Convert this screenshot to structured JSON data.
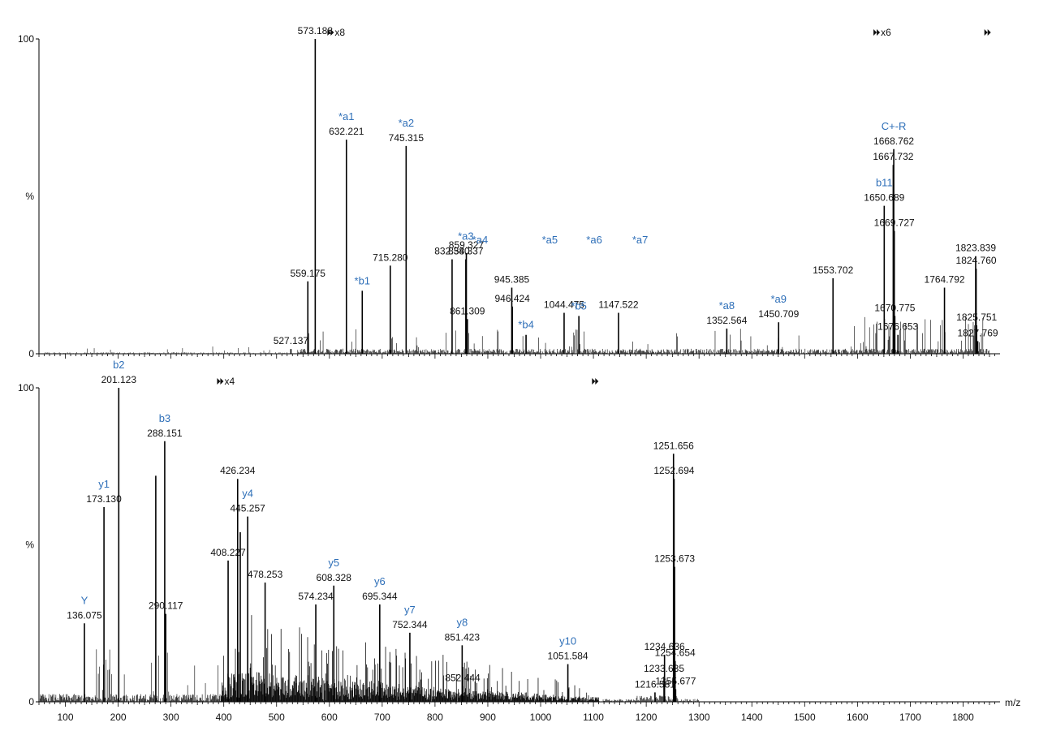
{
  "chart_data": [
    {
      "type": "bar",
      "panel": "top",
      "y_ticks": [
        "100",
        "%",
        "0"
      ],
      "ylim": [
        0,
        100
      ],
      "x_range": [
        50,
        1870
      ],
      "mag_markers": [
        {
          "x": 604,
          "label": "x8",
          "color": "#e0562a"
        },
        {
          "x": 1638,
          "label": "x6",
          "color": "#111111"
        },
        {
          "x": 1848,
          "label": "",
          "color": "#111111"
        }
      ],
      "peaks": [
        {
          "x": 527.137,
          "y": 1.5,
          "label": "527.137"
        },
        {
          "x": 559.175,
          "y": 23,
          "label": "559.175"
        },
        {
          "x": 573.188,
          "y": 100,
          "label": "573.188"
        },
        {
          "x": 632.221,
          "y": 68,
          "label": "632.221",
          "ion": "*a1"
        },
        {
          "x": 662.24,
          "y": 20,
          "label": "",
          "ion": "*b1"
        },
        {
          "x": 715.28,
          "y": 28,
          "label": "715.280"
        },
        {
          "x": 745.315,
          "y": 66,
          "label": "745.315",
          "ion": "*a2"
        },
        {
          "x": 832.34,
          "y": 30,
          "label": "832.340"
        },
        {
          "x": 858.337,
          "y": 30,
          "label": "858.337",
          "ion": "*a3"
        },
        {
          "x": 859.327,
          "y": 32,
          "label": "859.327"
        },
        {
          "x": 861.309,
          "y": 11,
          "label": "861.309"
        },
        {
          "x": 885.35,
          "y": 0,
          "label": "",
          "ion": "*a4"
        },
        {
          "x": 945.385,
          "y": 21,
          "label": "945.385"
        },
        {
          "x": 946.424,
          "y": 15,
          "label": "946.424"
        },
        {
          "x": 972.4,
          "y": 6,
          "label": "",
          "ion": "*b4"
        },
        {
          "x": 1044.475,
          "y": 13,
          "label": "1044.475"
        },
        {
          "x": 1017.45,
          "y": 0,
          "label": "",
          "ion": "*a5"
        },
        {
          "x": 1072.46,
          "y": 12,
          "label": "",
          "ion": "*b5"
        },
        {
          "x": 1101.5,
          "y": 0,
          "label": "",
          "ion": "*a6"
        },
        {
          "x": 1147.522,
          "y": 13,
          "label": "1147.522"
        },
        {
          "x": 1188.5,
          "y": 0,
          "label": "",
          "ion": "*a7"
        },
        {
          "x": 1352.564,
          "y": 8,
          "label": "1352.564",
          "ion": "*a8"
        },
        {
          "x": 1450.709,
          "y": 10,
          "label": "1450.709",
          "ion": "*a9"
        },
        {
          "x": 1553.702,
          "y": 24,
          "label": "1553.702"
        },
        {
          "x": 1650.689,
          "y": 47,
          "label": "1650.689",
          "ion": "b11"
        },
        {
          "x": 1667.732,
          "y": 60,
          "label": "1667.732"
        },
        {
          "x": 1668.762,
          "y": 65,
          "label": "1668.762",
          "ion": "C+-R"
        },
        {
          "x": 1669.727,
          "y": 39,
          "label": "1669.727"
        },
        {
          "x": 1670.775,
          "y": 12,
          "label": "1670.775"
        },
        {
          "x": 1676.653,
          "y": 6,
          "label": "1676.653"
        },
        {
          "x": 1764.792,
          "y": 21,
          "label": "1764.792"
        },
        {
          "x": 1823.839,
          "y": 31,
          "label": "1823.839"
        },
        {
          "x": 1824.76,
          "y": 27,
          "label": "1824.760"
        },
        {
          "x": 1825.751,
          "y": 9,
          "label": "1825.751"
        },
        {
          "x": 1827.769,
          "y": 4,
          "label": "1827.769"
        }
      ]
    },
    {
      "type": "bar",
      "panel": "bottom",
      "xlabel": "m/z",
      "y_ticks": [
        "100",
        "%",
        "0"
      ],
      "ylim": [
        0,
        100
      ],
      "x_range": [
        50,
        1870
      ],
      "x_ticks": [
        100,
        200,
        300,
        400,
        500,
        600,
        700,
        800,
        900,
        1000,
        1100,
        1200,
        1300,
        1400,
        1500,
        1600,
        1700,
        1800
      ],
      "mag_markers": [
        {
          "x": 395,
          "label": "x4",
          "color": "#e0562a"
        },
        {
          "x": 1105,
          "label": "",
          "color": "#111111"
        }
      ],
      "peaks": [
        {
          "x": 136.075,
          "y": 25,
          "label": "136.075",
          "ion": "Y"
        },
        {
          "x": 173.13,
          "y": 62,
          "label": "173.130",
          "ion": "y1"
        },
        {
          "x": 201.123,
          "y": 100,
          "label": "201.123",
          "ion": "b2"
        },
        {
          "x": 271.2,
          "y": 72,
          "label": ""
        },
        {
          "x": 288.151,
          "y": 83,
          "label": "288.151",
          "ion": "b3"
        },
        {
          "x": 290.117,
          "y": 28,
          "label": "290.117"
        },
        {
          "x": 408.227,
          "y": 45,
          "label": "408.227"
        },
        {
          "x": 426.234,
          "y": 71,
          "label": "426.234"
        },
        {
          "x": 431.2,
          "y": 54,
          "label": ""
        },
        {
          "x": 445.257,
          "y": 59,
          "label": "445.257",
          "ion": "y4"
        },
        {
          "x": 478.253,
          "y": 38,
          "label": "478.253"
        },
        {
          "x": 574.234,
          "y": 31,
          "label": "574.234"
        },
        {
          "x": 608.328,
          "y": 37,
          "label": "608.328",
          "ion": "y5"
        },
        {
          "x": 695.344,
          "y": 31,
          "label": "695.344",
          "ion": "y6"
        },
        {
          "x": 752.344,
          "y": 22,
          "label": "752.344",
          "ion": "y7"
        },
        {
          "x": 851.423,
          "y": 18,
          "label": "851.423",
          "ion": "y8"
        },
        {
          "x": 852.444,
          "y": 5,
          "label": "852.444"
        },
        {
          "x": 1051.584,
          "y": 12,
          "label": "1051.584",
          "ion": "y10"
        },
        {
          "x": 1216.581,
          "y": 3,
          "label": "1216.581"
        },
        {
          "x": 1233.635,
          "y": 8,
          "label": "1233.635"
        },
        {
          "x": 1234.636,
          "y": 15,
          "label": "1234.636"
        },
        {
          "x": 1251.656,
          "y": 79,
          "label": "1251.656"
        },
        {
          "x": 1252.694,
          "y": 71,
          "label": "1252.694"
        },
        {
          "x": 1253.673,
          "y": 43,
          "label": "1253.673"
        },
        {
          "x": 1254.654,
          "y": 13,
          "label": "1254.654"
        },
        {
          "x": 1255.677,
          "y": 4,
          "label": "1255.677"
        }
      ]
    }
  ]
}
